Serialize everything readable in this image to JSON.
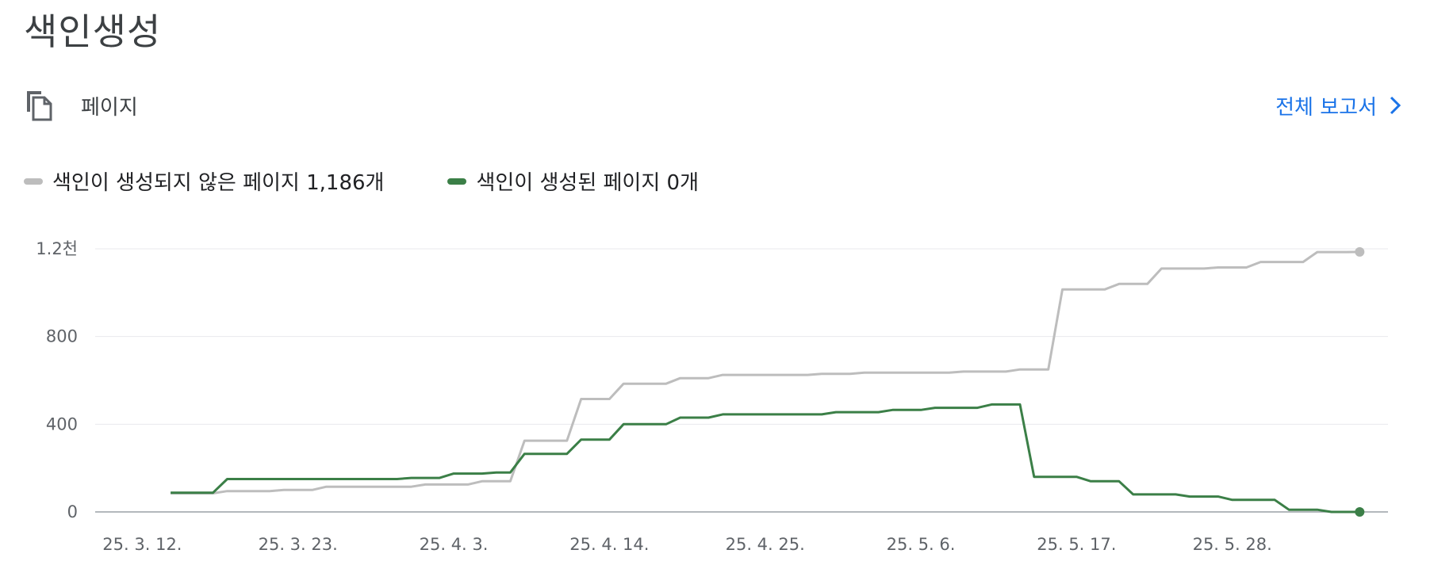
{
  "header": {
    "title": "색인생성",
    "type_label": "페이지",
    "type_icon": "copy-pages-icon",
    "report_link_label": "전체 보고서",
    "report_link_icon": "chevron-right-icon"
  },
  "colors": {
    "not_indexed": "#bdbdbd",
    "indexed": "#3b7f47",
    "link": "#1a73e8",
    "grid": "#e8eaed",
    "baseline": "#9aa0a6"
  },
  "chart_data": {
    "type": "line",
    "title": "",
    "xlabel": "",
    "ylabel": "",
    "ylim": [
      0,
      1200
    ],
    "y_ticks": [
      0,
      400,
      800,
      1200
    ],
    "y_tick_labels": [
      "0",
      "400",
      "800",
      "1.2천"
    ],
    "x_range": [
      "2025-03-08",
      "2025-06-08"
    ],
    "x_tick_labels": [
      {
        "date": "2025-03-12",
        "label": "25. 3. 12."
      },
      {
        "date": "2025-03-23",
        "label": "25. 3. 23."
      },
      {
        "date": "2025-04-03",
        "label": "25. 4. 3."
      },
      {
        "date": "2025-04-14",
        "label": "25. 4. 14."
      },
      {
        "date": "2025-04-25",
        "label": "25. 4. 25."
      },
      {
        "date": "2025-05-06",
        "label": "25. 5. 6."
      },
      {
        "date": "2025-05-17",
        "label": "25. 5. 17."
      },
      {
        "date": "2025-05-28",
        "label": "25. 5. 28."
      }
    ],
    "grid": true,
    "legend": "top-left",
    "x": [
      "2025-03-14",
      "2025-03-15",
      "2025-03-16",
      "2025-03-17",
      "2025-03-18",
      "2025-03-19",
      "2025-03-20",
      "2025-03-21",
      "2025-03-22",
      "2025-03-23",
      "2025-03-24",
      "2025-03-25",
      "2025-03-26",
      "2025-03-27",
      "2025-03-28",
      "2025-03-29",
      "2025-03-30",
      "2025-03-31",
      "2025-04-01",
      "2025-04-02",
      "2025-04-03",
      "2025-04-04",
      "2025-04-05",
      "2025-04-06",
      "2025-04-07",
      "2025-04-08",
      "2025-04-09",
      "2025-04-10",
      "2025-04-11",
      "2025-04-12",
      "2025-04-13",
      "2025-04-14",
      "2025-04-15",
      "2025-04-16",
      "2025-04-17",
      "2025-04-18",
      "2025-04-19",
      "2025-04-20",
      "2025-04-21",
      "2025-04-22",
      "2025-04-23",
      "2025-04-24",
      "2025-04-25",
      "2025-04-26",
      "2025-04-27",
      "2025-04-28",
      "2025-04-29",
      "2025-04-30",
      "2025-05-01",
      "2025-05-02",
      "2025-05-03",
      "2025-05-04",
      "2025-05-05",
      "2025-05-06",
      "2025-05-07",
      "2025-05-08",
      "2025-05-09",
      "2025-05-10",
      "2025-05-11",
      "2025-05-12",
      "2025-05-13",
      "2025-05-14",
      "2025-05-15",
      "2025-05-16",
      "2025-05-17",
      "2025-05-18",
      "2025-05-19",
      "2025-05-20",
      "2025-05-21",
      "2025-05-22",
      "2025-05-23",
      "2025-05-24",
      "2025-05-25",
      "2025-05-26",
      "2025-05-27",
      "2025-05-28",
      "2025-05-29",
      "2025-05-30",
      "2025-05-31",
      "2025-06-01",
      "2025-06-02",
      "2025-06-03",
      "2025-06-04",
      "2025-06-05",
      "2025-06-06"
    ],
    "series": [
      {
        "name": "색인이 생성되지 않은 페이지",
        "legend_label": "색인이 생성되지 않은 페이지 1,186개",
        "color": "#bdbdbd",
        "values": [
          85,
          85,
          85,
          85,
          95,
          95,
          95,
          95,
          100,
          100,
          100,
          115,
          115,
          115,
          115,
          115,
          115,
          115,
          125,
          125,
          125,
          125,
          140,
          140,
          140,
          325,
          325,
          325,
          325,
          515,
          515,
          515,
          585,
          585,
          585,
          585,
          610,
          610,
          610,
          625,
          625,
          625,
          625,
          625,
          625,
          625,
          630,
          630,
          630,
          635,
          635,
          635,
          635,
          635,
          635,
          635,
          640,
          640,
          640,
          640,
          650,
          650,
          650,
          1015,
          1015,
          1015,
          1015,
          1040,
          1040,
          1040,
          1110,
          1110,
          1110,
          1110,
          1115,
          1115,
          1115,
          1140,
          1140,
          1140,
          1140,
          1185,
          1185,
          1185,
          1186
        ]
      },
      {
        "name": "색인이 생성된 페이지",
        "legend_label": "색인이 생성된 페이지 0개",
        "color": "#3b7f47",
        "values": [
          88,
          88,
          88,
          88,
          150,
          150,
          150,
          150,
          150,
          150,
          150,
          150,
          150,
          150,
          150,
          150,
          150,
          155,
          155,
          155,
          175,
          175,
          175,
          180,
          180,
          265,
          265,
          265,
          265,
          330,
          330,
          330,
          400,
          400,
          400,
          400,
          430,
          430,
          430,
          445,
          445,
          445,
          445,
          445,
          445,
          445,
          445,
          455,
          455,
          455,
          455,
          465,
          465,
          465,
          475,
          475,
          475,
          475,
          490,
          490,
          490,
          160,
          160,
          160,
          160,
          140,
          140,
          140,
          80,
          80,
          80,
          80,
          70,
          70,
          70,
          55,
          55,
          55,
          55,
          10,
          10,
          10,
          0,
          0,
          0
        ]
      }
    ]
  }
}
